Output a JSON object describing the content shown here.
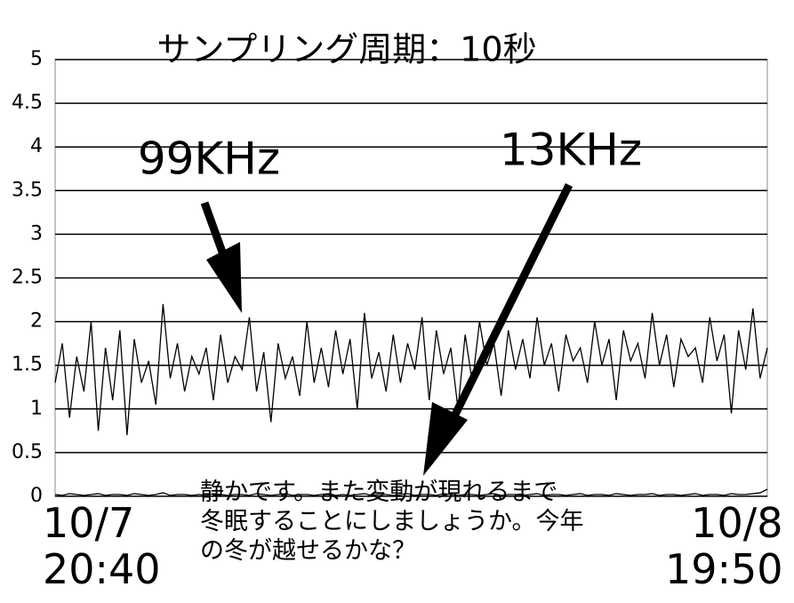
{
  "chart_data": {
    "type": "line",
    "title": "サンプリング周期：10秒",
    "note": "静かです。また変動が現れるまで\n冬眠することにしましょうか。今年\nの冬が越せるかな？",
    "ylim": [
      0,
      5
    ],
    "yticks": [
      0,
      0.5,
      1,
      1.5,
      2,
      2.5,
      3,
      3.5,
      4,
      4.5,
      5
    ],
    "grid": true,
    "categories": [
      "10/7\n20:40",
      null,
      null,
      null,
      null,
      null,
      null,
      null,
      null,
      null,
      null,
      null,
      null,
      null,
      null,
      null,
      null,
      null,
      null,
      null,
      null,
      null,
      null,
      null,
      null,
      null,
      null,
      null,
      null,
      null,
      null,
      null,
      null,
      null,
      null,
      null,
      null,
      null,
      null,
      null,
      null,
      null,
      null,
      null,
      null,
      null,
      null,
      null,
      null,
      null,
      null,
      null,
      null,
      null,
      null,
      null,
      null,
      null,
      null,
      null,
      null,
      null,
      null,
      null,
      null,
      null,
      null,
      null,
      null,
      null,
      null,
      null,
      null,
      null,
      null,
      null,
      null,
      null,
      null,
      null,
      null,
      null,
      null,
      null,
      null,
      null,
      null,
      null,
      null,
      null,
      null,
      null,
      null,
      null,
      null,
      null,
      null,
      null,
      null,
      "10/8\n19:50"
    ],
    "series": [
      {
        "name": "99KHz",
        "color": "#000000",
        "values": [
          1.3,
          1.75,
          0.9,
          1.6,
          1.2,
          2.0,
          0.75,
          1.7,
          1.1,
          1.9,
          0.7,
          1.8,
          1.3,
          1.55,
          1.05,
          2.2,
          1.35,
          1.75,
          1.2,
          1.6,
          1.4,
          1.7,
          1.1,
          1.85,
          1.3,
          1.6,
          1.45,
          2.05,
          1.2,
          1.65,
          0.85,
          1.75,
          1.35,
          1.6,
          1.15,
          2.0,
          1.3,
          1.7,
          1.25,
          1.9,
          1.4,
          1.8,
          1.0,
          2.1,
          1.35,
          1.65,
          1.2,
          1.85,
          1.3,
          1.75,
          1.45,
          2.05,
          1.1,
          1.9,
          1.4,
          1.7,
          1.0,
          1.85,
          1.3,
          2.0,
          1.5,
          1.75,
          1.15,
          1.9,
          1.45,
          1.8,
          1.35,
          2.05,
          1.5,
          1.75,
          1.2,
          1.85,
          1.55,
          1.7,
          1.3,
          2.0,
          1.5,
          1.8,
          1.1,
          1.9,
          1.55,
          1.75,
          1.35,
          2.1,
          1.5,
          1.85,
          1.25,
          1.8,
          1.6,
          1.7,
          1.3,
          2.05,
          1.55,
          1.85,
          0.95,
          1.9,
          1.45,
          2.15,
          1.35,
          1.7
        ]
      },
      {
        "name": "13KHz",
        "color": "#000000",
        "values": [
          0.02,
          0.01,
          0.03,
          0.02,
          0.01,
          0.02,
          0.03,
          0.01,
          0.02,
          0.02,
          0.01,
          0.03,
          0.02,
          0.01,
          0.02,
          0.04,
          0.01,
          0.02,
          0.02,
          0.01,
          0.02,
          0.01,
          0.03,
          0.02,
          0.01,
          0.02,
          0.02,
          0.01,
          0.03,
          0.02,
          0.01,
          0.02,
          0.03,
          0.01,
          0.02,
          0.02,
          0.01,
          0.02,
          0.03,
          0.01,
          0.02,
          0.01,
          0.02,
          0.03,
          0.01,
          0.02,
          0.02,
          0.01,
          0.02,
          0.03,
          0.01,
          0.02,
          0.02,
          0.01,
          0.03,
          0.02,
          0.01,
          0.02,
          0.02,
          0.01,
          0.02,
          0.03,
          0.01,
          0.02,
          0.02,
          0.01,
          0.02,
          0.03,
          0.01,
          0.02,
          0.02,
          0.01,
          0.02,
          0.03,
          0.01,
          0.02,
          0.02,
          0.01,
          0.03,
          0.02,
          0.01,
          0.02,
          0.02,
          0.03,
          0.01,
          0.02,
          0.02,
          0.01,
          0.02,
          0.03,
          0.01,
          0.02,
          0.02,
          0.01,
          0.03,
          0.02,
          0.02,
          0.03,
          0.04,
          0.08
        ]
      }
    ]
  }
}
